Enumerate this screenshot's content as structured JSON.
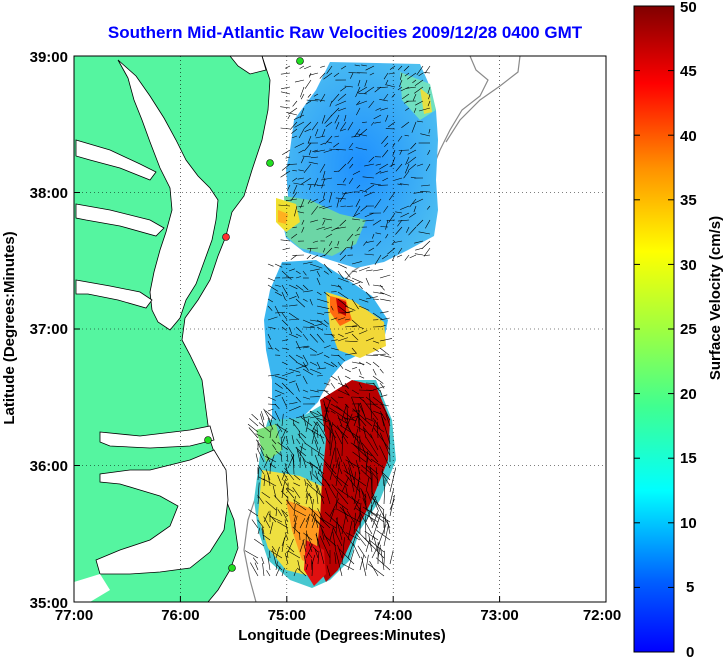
{
  "title": "Southern Mid-Atlantic Raw Velocities 2009/12/28 0400 GMT",
  "xlabel": "Longitude (Degrees:Minutes)",
  "ylabel": "Latitude (Degrees:Minutes)",
  "colorbar_label": "Surface Velocity (cm/s)",
  "x_ticks": [
    "77:00",
    "76:00",
    "75:00",
    "74:00",
    "73:00",
    "72:00"
  ],
  "y_ticks": [
    "39:00",
    "38:00",
    "37:00",
    "36:00",
    "35:00"
  ],
  "colorbar_ticks": [
    "50",
    "45",
    "40",
    "35",
    "30",
    "25",
    "20",
    "15",
    "10",
    "5",
    "0"
  ],
  "colors": {
    "land": "#55f5a0",
    "title": "#0000ff",
    "station": "#22dd22",
    "station_alt": "#ff3030"
  },
  "chart_data": {
    "type": "heatmap",
    "xlim": [
      -77,
      -72
    ],
    "ylim": [
      35,
      39
    ],
    "clim": [
      0,
      50
    ],
    "colormap": "jet",
    "grid": true
  }
}
